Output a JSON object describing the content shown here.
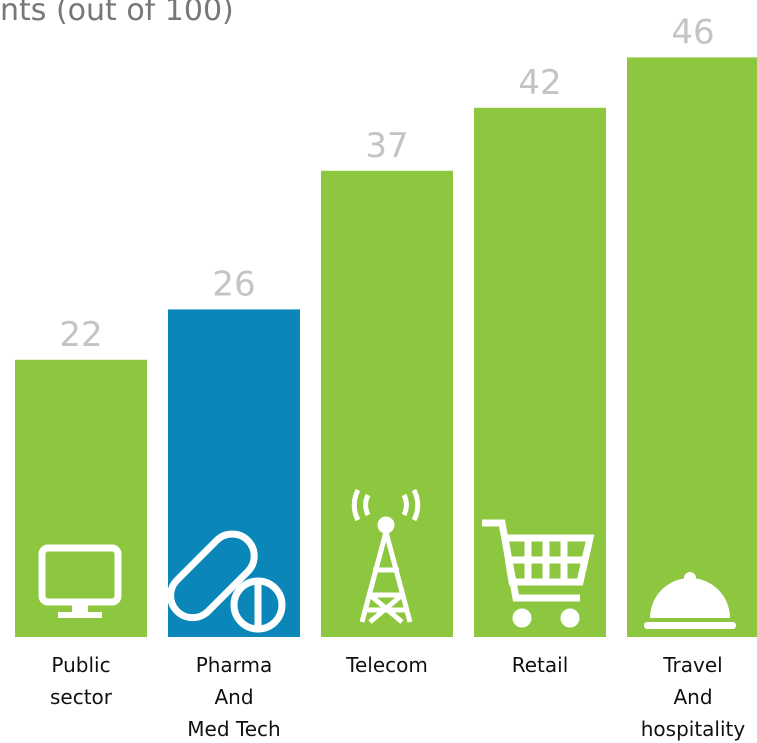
{
  "chart_data": {
    "type": "bar",
    "title": "nts (out of 100)",
    "categories": [
      [
        "Public",
        "sector"
      ],
      [
        "Pharma",
        "And",
        "Med Tech"
      ],
      [
        "Telecom"
      ],
      [
        "Retail"
      ],
      [
        "Travel",
        "And",
        "hospitality"
      ]
    ],
    "values": [
      22,
      26,
      37,
      42,
      46
    ],
    "colors": [
      "#8dc63f",
      "#0a87b8",
      "#8dc63f",
      "#8dc63f",
      "#8dc63f"
    ],
    "ylim": [
      0,
      50
    ]
  }
}
